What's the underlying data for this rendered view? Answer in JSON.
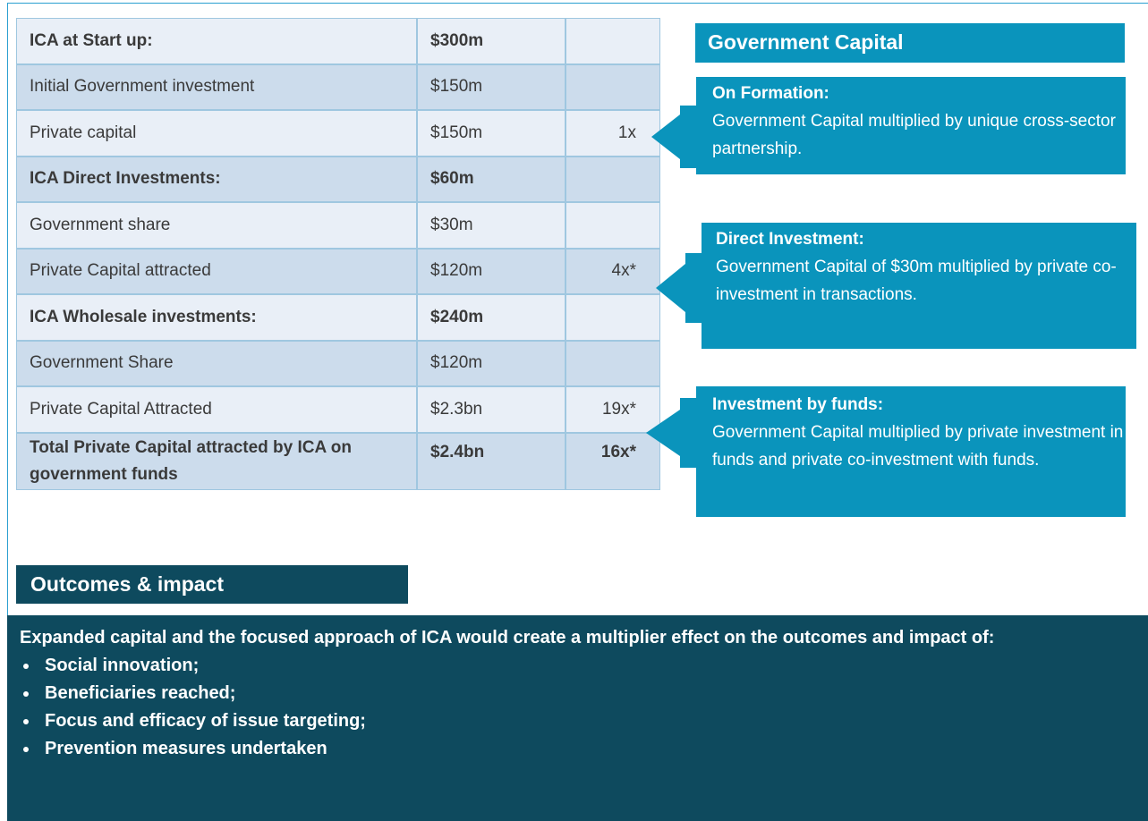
{
  "table": {
    "rows": [
      {
        "label": "ICA at Start up:",
        "amount": "$300m",
        "bold": true
      },
      {
        "label": "Initial Government  investment",
        "amount": "$150m"
      },
      {
        "label": "Private capital",
        "amount": "$150m",
        "multiple": "1x"
      },
      {
        "label": "ICA Direct Investments:",
        "amount": "$60m",
        "bold": true
      },
      {
        "label": "Government  share",
        "amount": "$30m"
      },
      {
        "label": "Private Capital attracted",
        "amount": "$120m",
        "multiple": "4x*"
      },
      {
        "label": "ICA Wholesale investments:",
        "amount": "$240m",
        "bold": true
      },
      {
        "label": "Government  Share",
        "amount": "$120m"
      },
      {
        "label": "Private Capital Attracted",
        "amount": "$2.3bn",
        "multiple": "19x*"
      },
      {
        "label": "Total Private Capital attracted by ICA on government funds",
        "amount": "$2.4bn",
        "multiple": "16x*",
        "bold": true
      }
    ]
  },
  "government_capital": {
    "title": "Government Capital",
    "callouts": [
      {
        "title": "On Formation:",
        "text": "Government  Capital multiplied by unique cross-sector partnership."
      },
      {
        "title": "Direct Investment:",
        "text": "Government  Capital of $30m multiplied by private co-investment in transactions."
      },
      {
        "title": "Investment by funds:",
        "text": "Government  Capital multiplied by private investment in funds and private co-investment with funds."
      }
    ]
  },
  "outcomes": {
    "title": "Outcomes & impact",
    "intro": "Expanded capital and the focused approach of ICA would create a multiplier effect on the outcomes and impact of:",
    "bullets": [
      "Social innovation;",
      "Beneficiaries reached;",
      "Focus and efficacy of issue targeting;",
      "Prevention measures undertaken"
    ]
  }
}
